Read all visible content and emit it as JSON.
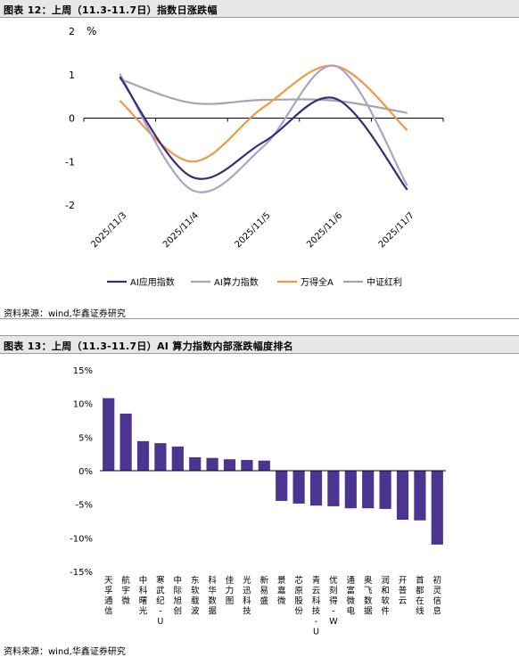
{
  "figure12": {
    "header": "图表 12：上周（11.3-11.7日）指数日涨跌幅",
    "source": "资料来源：wind,华鑫证券研究",
    "chart_data": {
      "type": "line",
      "unit_label": "%",
      "x": [
        "2025/11/3",
        "2025/11/4",
        "2025/11/5",
        "2025/11/6",
        "2025/11/7"
      ],
      "yticks": [
        "2",
        "1",
        "0",
        "-1",
        "-2"
      ],
      "ylim": [
        -2,
        2
      ],
      "legend_position": "bottom",
      "series": [
        {
          "name": "AI应用指数",
          "color": "#3c2a78",
          "values": [
            0.95,
            -1.35,
            -0.55,
            0.45,
            -1.65
          ]
        },
        {
          "name": "AI算力指数",
          "color": "#a9a3cc",
          "values": [
            1.02,
            -1.65,
            -0.65,
            1.2,
            -1.55
          ]
        },
        {
          "name": "万得全A",
          "color": "#ee9a44",
          "values": [
            0.4,
            -1.0,
            0.25,
            1.2,
            -0.28
          ]
        },
        {
          "name": "中证红利",
          "color": "#a6a6a6",
          "values": [
            0.9,
            0.35,
            0.42,
            0.4,
            0.12
          ]
        }
      ]
    }
  },
  "figure13": {
    "header": "图表 13：上周（11.3-11.7日）AI 算力指数内部涨跌幅度排名",
    "source": "资料来源：wind,华鑫证券研究",
    "chart_data": {
      "type": "bar",
      "color": "#4b3591",
      "yticks": [
        "15%",
        "10%",
        "5%",
        "0%",
        "-5%",
        "-10%",
        "-15%"
      ],
      "ylim": [
        -15,
        15
      ],
      "categories": [
        "天孚通信",
        "航宇微",
        "中科曙光",
        "寒武纪-U",
        "中际旭创",
        "东软载波",
        "科华数据",
        "佳力图",
        "光迅科技",
        "新易盛",
        "景嘉微",
        "芯原股份",
        "青云科技-U",
        "优刻得-W",
        "通富微电",
        "奥飞数据",
        "润和软件",
        "开普云",
        "首都在线",
        "初灵信息"
      ],
      "values": [
        10.8,
        8.5,
        4.4,
        4.1,
        3.6,
        2.0,
        1.9,
        1.7,
        1.6,
        1.5,
        -4.5,
        -4.9,
        -5.2,
        -5.3,
        -5.6,
        -5.6,
        -5.7,
        -7.3,
        -7.4,
        -11.0
      ]
    }
  }
}
